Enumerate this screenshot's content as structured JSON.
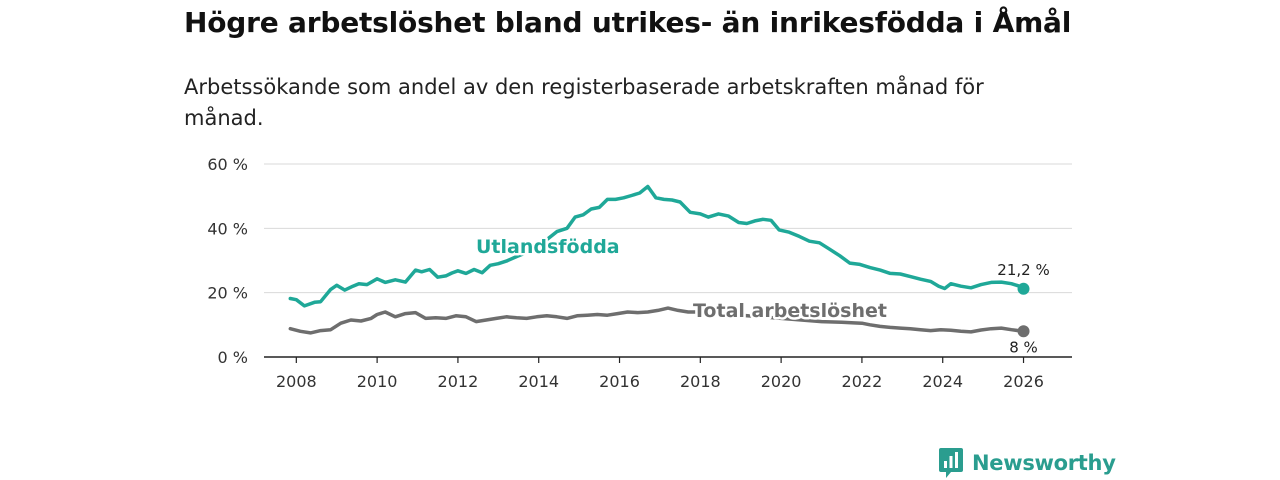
{
  "title": "Högre arbetslöshet bland utrikes- än inrikesfödda i Åmål",
  "subtitle": "Arbetssökande som andel av den registerbaserade arbetskraften månad för månad.",
  "brand": {
    "name": "Newsworthy",
    "icon": "newsworthy-logo-icon"
  },
  "colors": {
    "utlandsfodda": "#1fa898",
    "total": "#6e6e6e",
    "grid": "#d9d9d9",
    "axis": "#222222"
  },
  "chart_data": {
    "type": "line",
    "title": "Högre arbetslöshet bland utrikes- än inrikesfödda i Åmål",
    "subtitle": "Arbetssökande som andel av den registerbaserade arbetskraften månad för månad.",
    "xlabel": "",
    "ylabel": "",
    "xlim": [
      2007.2,
      2027.2
    ],
    "ylim": [
      0,
      60
    ],
    "x_ticks": [
      2008,
      2010,
      2012,
      2014,
      2016,
      2018,
      2020,
      2022,
      2024,
      2026
    ],
    "y_ticks": [
      0,
      20,
      40,
      60
    ],
    "y_tick_labels": [
      "0 %",
      "20 %",
      "40 %",
      "60 %"
    ],
    "grid": true,
    "legend": "inline labels",
    "series": [
      {
        "name": "Utlandsfödda",
        "label": "Utlandsfödda",
        "color": "#1fa898",
        "end_label": "21,2 %",
        "x": [
          2007.85,
          2008.0,
          2008.2,
          2008.45,
          2008.6,
          2008.85,
          2009.0,
          2009.2,
          2009.4,
          2009.55,
          2009.75,
          2010.0,
          2010.2,
          2010.45,
          2010.7,
          2010.95,
          2011.1,
          2011.3,
          2011.5,
          2011.7,
          2011.85,
          2012.0,
          2012.2,
          2012.4,
          2012.6,
          2012.8,
          2013.0,
          2013.2,
          2013.45,
          2013.7,
          2013.95,
          2014.2,
          2014.45,
          2014.7,
          2014.9,
          2015.1,
          2015.3,
          2015.5,
          2015.7,
          2015.9,
          2016.1,
          2016.3,
          2016.5,
          2016.7,
          2016.9,
          2017.1,
          2017.3,
          2017.5,
          2017.75,
          2018.0,
          2018.2,
          2018.45,
          2018.7,
          2018.95,
          2019.15,
          2019.35,
          2019.55,
          2019.75,
          2019.95,
          2020.2,
          2020.45,
          2020.7,
          2020.95,
          2021.2,
          2021.45,
          2021.7,
          2021.95,
          2022.2,
          2022.45,
          2022.7,
          2022.95,
          2023.2,
          2023.45,
          2023.7,
          2023.9,
          2024.05,
          2024.2,
          2024.45,
          2024.7,
          2024.95,
          2025.2,
          2025.45,
          2025.7,
          2025.9,
          2026.0
        ],
        "values": [
          18.2,
          17.8,
          15.9,
          17.0,
          17.2,
          21.0,
          22.3,
          20.8,
          22.0,
          22.8,
          22.5,
          24.3,
          23.2,
          24.0,
          23.3,
          27.0,
          26.5,
          27.2,
          24.8,
          25.2,
          26.1,
          26.8,
          26.0,
          27.2,
          26.2,
          28.5,
          29.0,
          29.8,
          31.2,
          32.5,
          34.2,
          36.5,
          39.0,
          40.0,
          43.5,
          44.2,
          46.0,
          46.5,
          49.0,
          49.0,
          49.5,
          50.2,
          51.0,
          53.0,
          49.5,
          49.0,
          48.8,
          48.2,
          45.0,
          44.5,
          43.5,
          44.5,
          43.8,
          41.8,
          41.5,
          42.3,
          42.8,
          42.5,
          39.5,
          38.8,
          37.5,
          36.0,
          35.5,
          33.5,
          31.5,
          29.2,
          28.8,
          27.8,
          27.0,
          26.0,
          25.8,
          25.0,
          24.2,
          23.5,
          22.0,
          21.3,
          22.8,
          22.0,
          21.5,
          22.5,
          23.2,
          23.3,
          22.8,
          22.0,
          21.2
        ]
      },
      {
        "name": "Total arbetslöshet",
        "label": "Total arbetslöshet",
        "color": "#6e6e6e",
        "end_label": "8 %",
        "x": [
          2007.85,
          2008.1,
          2008.35,
          2008.6,
          2008.85,
          2009.1,
          2009.35,
          2009.6,
          2009.85,
          2010.0,
          2010.2,
          2010.45,
          2010.7,
          2010.95,
          2011.2,
          2011.45,
          2011.7,
          2011.95,
          2012.2,
          2012.45,
          2012.7,
          2012.95,
          2013.2,
          2013.45,
          2013.7,
          2013.95,
          2014.2,
          2014.45,
          2014.7,
          2014.95,
          2015.2,
          2015.45,
          2015.7,
          2015.95,
          2016.2,
          2016.45,
          2016.7,
          2016.95,
          2017.2,
          2017.45,
          2017.7,
          2018.0,
          2018.5,
          2019.0,
          2019.5,
          2020.0,
          2020.5,
          2021.0,
          2021.5,
          2021.8,
          2022.0,
          2022.2,
          2022.45,
          2022.7,
          2022.95,
          2023.2,
          2023.45,
          2023.7,
          2023.95,
          2024.2,
          2024.45,
          2024.7,
          2024.95,
          2025.2,
          2025.45,
          2025.7,
          2026.0
        ],
        "values": [
          8.8,
          8.0,
          7.5,
          8.2,
          8.5,
          10.5,
          11.5,
          11.2,
          12.0,
          13.2,
          14.0,
          12.5,
          13.5,
          13.8,
          12.0,
          12.2,
          12.0,
          12.8,
          12.5,
          11.0,
          11.5,
          12.0,
          12.5,
          12.2,
          12.0,
          12.5,
          12.8,
          12.5,
          12.0,
          12.8,
          13.0,
          13.2,
          13.0,
          13.5,
          14.0,
          13.8,
          14.0,
          14.5,
          15.2,
          14.5,
          14.0,
          14.0,
          13.5,
          13.0,
          12.5,
          12.0,
          11.5,
          11.0,
          10.8,
          10.6,
          10.5,
          10.0,
          9.5,
          9.2,
          9.0,
          8.8,
          8.5,
          8.2,
          8.5,
          8.3,
          8.0,
          7.8,
          8.4,
          8.8,
          9.0,
          8.5,
          8.0
        ]
      }
    ]
  }
}
